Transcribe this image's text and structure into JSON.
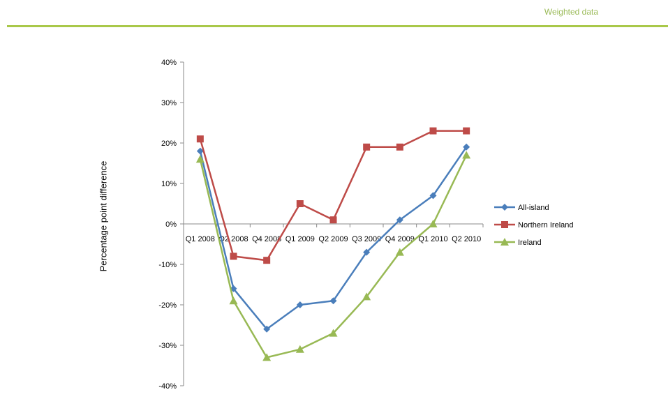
{
  "header": {
    "label": "Weighted data"
  },
  "chart_data": {
    "type": "line",
    "title": "",
    "xlabel": "",
    "ylabel": "Percentage point difference",
    "ylim": [
      -40,
      40
    ],
    "y_ticks": [
      "40%",
      "30%",
      "20%",
      "10%",
      "0%",
      "-10%",
      "-20%",
      "-30%",
      "-40%"
    ],
    "categories": [
      "Q1 2008",
      "Q2 2008",
      "Q4 2008",
      "Q1 2009",
      "Q2 2009",
      "Q3 2009",
      "Q4 2009",
      "Q1 2010",
      "Q2 2010"
    ],
    "legend_position": "right",
    "grid": false,
    "series": [
      {
        "name": "All-island",
        "color": "#4a7ebb",
        "marker": "diamond",
        "values": [
          18,
          -16,
          -26,
          -20,
          -19,
          -7,
          1,
          7,
          19
        ]
      },
      {
        "name": "Northern Ireland",
        "color": "#be4b48",
        "marker": "square",
        "values": [
          21,
          -8,
          -9,
          5,
          1,
          19,
          19,
          23,
          23
        ]
      },
      {
        "name": "Ireland",
        "color": "#98b954",
        "marker": "triangle",
        "values": [
          16,
          -19,
          -33,
          -31,
          -27,
          -18,
          -7,
          0,
          17
        ]
      }
    ]
  }
}
